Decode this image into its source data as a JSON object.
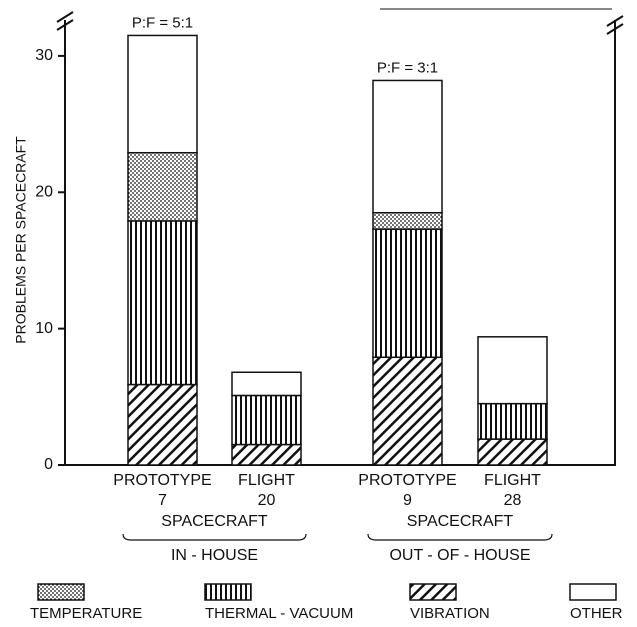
{
  "chart_data": {
    "type": "stacked_bar",
    "y_label": "PROBLEMS PER SPACECRAFT",
    "categories": [
      "PROTOTYPE",
      "FLIGHT",
      "PROTOTYPE",
      "FLIGHT"
    ],
    "spacecraft_counts": [
      7,
      20,
      9,
      28
    ],
    "groups": [
      {
        "sublabel": "SPACECRAFT",
        "label": "IN - HOUSE"
      },
      {
        "sublabel": "SPACECRAFT",
        "label": "OUT - OF - HOUSE"
      }
    ],
    "annotations": [
      "P:F = 5:1",
      "P:F = 3:1"
    ],
    "series": [
      {
        "name": "TEMPERATURE",
        "color": "#111111",
        "pattern": "dots",
        "values": [
          5.0,
          0,
          1.2,
          0
        ]
      },
      {
        "name": "THERMAL - VACUUM",
        "color": "#111111",
        "pattern": "vertical",
        "values": [
          12.0,
          3.6,
          9.4,
          2.6
        ]
      },
      {
        "name": "VIBRATION",
        "color": "#111111",
        "pattern": "diagonal",
        "values": [
          5.9,
          1.5,
          7.9,
          1.9
        ]
      },
      {
        "name": "OTHER",
        "color": "#111111",
        "pattern": "none",
        "values": [
          8.6,
          1.7,
          9.7,
          4.9
        ]
      }
    ],
    "ylim": [
      0,
      33
    ],
    "yticks": [
      0,
      10,
      20,
      30
    ]
  }
}
